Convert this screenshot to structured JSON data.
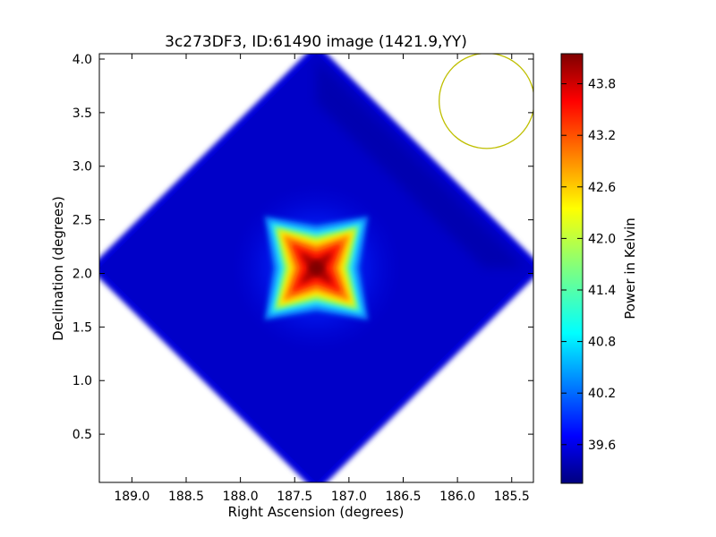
{
  "chart_data": {
    "type": "heatmap",
    "title": "3c273DF3, ID:61490 image (1421.9,YY)",
    "xlabel": "Right Ascension (degrees)",
    "ylabel": "Declination (degrees)",
    "xlim": [
      189.3,
      185.3
    ],
    "ylim": [
      0.05,
      4.05
    ],
    "x_ticks": [
      "189.0",
      "188.5",
      "188.0",
      "187.5",
      "187.0",
      "186.5",
      "186.0",
      "185.5"
    ],
    "x_tick_values": [
      189.0,
      188.5,
      188.0,
      187.5,
      187.0,
      186.5,
      186.0,
      185.5
    ],
    "y_ticks": [
      "0.5",
      "1.0",
      "1.5",
      "2.0",
      "2.5",
      "3.0",
      "3.5",
      "4.0"
    ],
    "y_tick_values": [
      0.5,
      1.0,
      1.5,
      2.0,
      2.5,
      3.0,
      3.5,
      4.0
    ],
    "colormap": "jet",
    "field": {
      "shape": "diamond",
      "center": [
        187.3,
        2.05
      ],
      "half_diagonal": 2.0,
      "background_level": 39.6
    },
    "source": {
      "center": [
        187.3,
        2.05
      ],
      "peak": 44.1,
      "description_free": true
    },
    "beam_circle": {
      "center": [
        185.73,
        3.61
      ],
      "radius": 0.37,
      "color": "#bfbf00"
    },
    "colorbar": {
      "label": "Power in Kelvin",
      "range": [
        39.15,
        44.15
      ],
      "ticks": [
        "39.6",
        "40.2",
        "40.8",
        "41.4",
        "42.0",
        "42.6",
        "43.2",
        "43.8"
      ],
      "tick_values": [
        39.6,
        40.2,
        40.8,
        41.4,
        42.0,
        42.6,
        43.2,
        43.8
      ]
    }
  }
}
